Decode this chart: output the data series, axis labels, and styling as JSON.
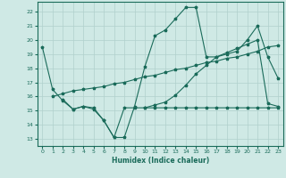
{
  "title": "",
  "xlabel": "Humidex (Indice chaleur)",
  "xlim": [
    -0.5,
    23.5
  ],
  "ylim": [
    12.5,
    22.7
  ],
  "yticks": [
    13,
    14,
    15,
    16,
    17,
    18,
    19,
    20,
    21,
    22
  ],
  "xticks": [
    0,
    1,
    2,
    3,
    4,
    5,
    6,
    7,
    8,
    9,
    10,
    11,
    12,
    13,
    14,
    15,
    16,
    17,
    18,
    19,
    20,
    21,
    22,
    23
  ],
  "background_color": "#cfe9e5",
  "grid_color": "#b0d0cc",
  "line_color": "#1a6b5a",
  "lines": [
    {
      "x": [
        2,
        3,
        4,
        5,
        6,
        7,
        8,
        9,
        10,
        11,
        12,
        13,
        14,
        15,
        16,
        17,
        18,
        19,
        20,
        21,
        22,
        23
      ],
      "y": [
        15.8,
        15.1,
        15.3,
        15.1,
        14.3,
        13.1,
        15.2,
        15.2,
        15.2,
        15.2,
        15.2,
        15.2,
        15.2,
        15.2,
        15.2,
        15.2,
        15.2,
        15.2,
        15.2,
        15.2,
        15.2,
        15.2
      ]
    },
    {
      "x": [
        1,
        2,
        3,
        4,
        5,
        6,
        7,
        8,
        9,
        10,
        11,
        12,
        13,
        14,
        15,
        16,
        17,
        18,
        19,
        20,
        21,
        22,
        23
      ],
      "y": [
        16.0,
        16.2,
        16.4,
        16.5,
        16.6,
        16.7,
        16.9,
        17.0,
        17.2,
        17.4,
        17.5,
        17.7,
        17.9,
        18.0,
        18.2,
        18.4,
        18.5,
        18.7,
        18.8,
        19.0,
        19.2,
        19.5,
        19.6
      ]
    },
    {
      "x": [
        0,
        1,
        2,
        3,
        4,
        5,
        6,
        7,
        8,
        9,
        10,
        11,
        12,
        13,
        14,
        15,
        16,
        17,
        18,
        19,
        20,
        21,
        22,
        23
      ],
      "y": [
        19.5,
        16.5,
        15.7,
        15.1,
        15.3,
        15.2,
        14.3,
        13.1,
        13.1,
        15.3,
        18.1,
        20.3,
        20.7,
        21.5,
        22.3,
        22.3,
        18.8,
        18.8,
        19.0,
        19.2,
        20.0,
        21.0,
        18.8,
        17.3
      ]
    },
    {
      "x": [
        10,
        11,
        12,
        13,
        14,
        15,
        16,
        17,
        18,
        19,
        20,
        21,
        22,
        23
      ],
      "y": [
        15.2,
        15.4,
        15.6,
        16.1,
        16.8,
        17.6,
        18.2,
        18.8,
        19.1,
        19.4,
        19.7,
        20.0,
        15.5,
        15.3
      ]
    }
  ]
}
